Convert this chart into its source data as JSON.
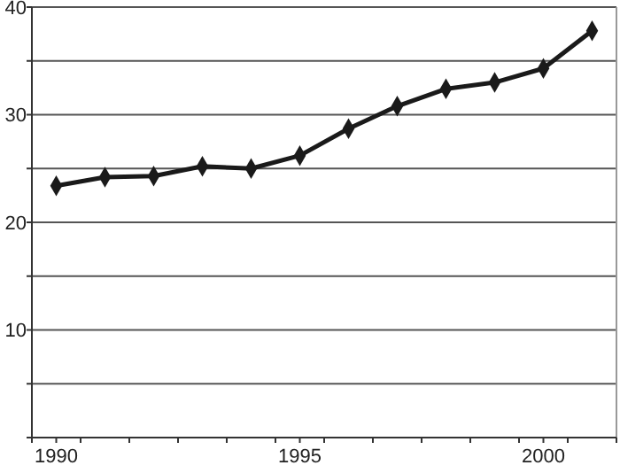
{
  "chart_data": {
    "type": "line",
    "x": [
      1990,
      1991,
      1992,
      1993,
      1994,
      1995,
      1996,
      1997,
      1998,
      1999,
      2000,
      2001
    ],
    "series": [
      {
        "color": "#1a1a1a",
        "values": [
          23.4,
          24.2,
          24.3,
          25.2,
          25.0,
          26.2,
          28.7,
          30.8,
          32.4,
          33.0,
          34.3,
          37.8
        ]
      }
    ],
    "xlim": [
      1989.5,
      2001.5
    ],
    "xticks": [
      1990,
      1995,
      2000,
      {
        "value": 1989.5,
        "label": null
      },
      {
        "value": 1990.5,
        "label": null
      },
      {
        "value": 1991.5,
        "label": null
      },
      {
        "value": 1992.5,
        "label": null
      },
      {
        "value": 1993.5,
        "label": null
      },
      {
        "value": 1994.5,
        "label": null
      },
      {
        "value": 1995.5,
        "label": null
      },
      {
        "value": 1996.5,
        "label": null
      },
      {
        "value": 1997.5,
        "label": null
      },
      {
        "value": 1998.5,
        "label": null
      },
      {
        "value": 1999.5,
        "label": null
      },
      {
        "value": 2000.5,
        "label": null
      },
      {
        "value": 2001.5,
        "label": null
      }
    ],
    "ylim": [
      0,
      40
    ],
    "yticks": [
      {
        "value": 0,
        "label": null
      },
      {
        "value": 5,
        "label": null
      },
      10,
      {
        "value": 15,
        "label": null
      },
      20,
      {
        "value": 25,
        "label": null
      },
      30,
      {
        "value": 35,
        "label": null
      },
      40
    ],
    "grid": "y",
    "marker": "diamond",
    "line_style": "solid"
  }
}
